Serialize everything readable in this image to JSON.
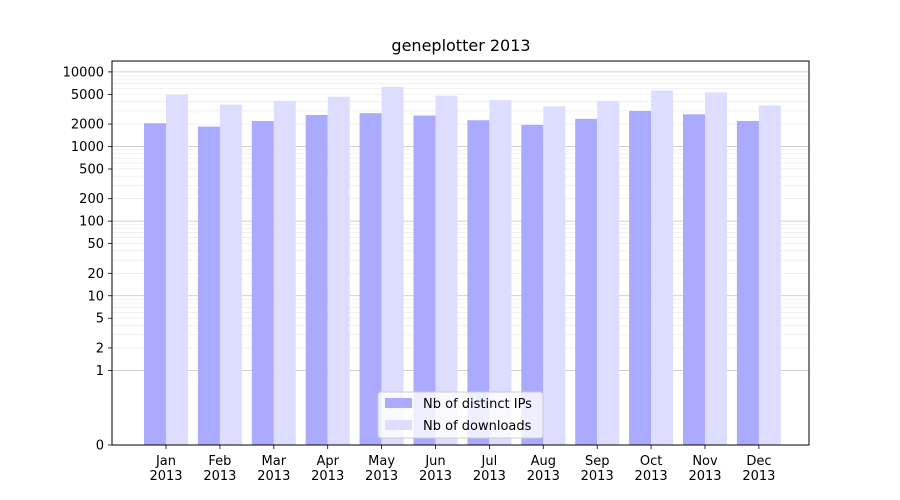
{
  "chart_data": {
    "type": "bar",
    "title": "geneplotter 2013",
    "xlabel": "",
    "ylabel": "",
    "yscale": "symlog",
    "ylim": [
      0,
      14000
    ],
    "grid": true,
    "legend_position": "bottom-center",
    "categories": [
      "Jan\n2013",
      "Feb\n2013",
      "Mar\n2013",
      "Apr\n2013",
      "May\n2013",
      "Jun\n2013",
      "Jul\n2013",
      "Aug\n2013",
      "Sep\n2013",
      "Oct\n2013",
      "Nov\n2013",
      "Dec\n2013"
    ],
    "y_ticks": [
      0,
      1,
      2,
      5,
      10,
      20,
      50,
      100,
      200,
      500,
      1000,
      2000,
      5000,
      10000
    ],
    "y_tick_labels": [
      "0",
      "1",
      "2",
      "5",
      "10",
      "20",
      "50",
      "100",
      "200",
      "500",
      "1000",
      "2000",
      "5000",
      "10000"
    ],
    "series": [
      {
        "name": "Nb of distinct IPs",
        "color": "#aaaaff",
        "values": [
          2050,
          1850,
          2200,
          2650,
          2800,
          2600,
          2250,
          1950,
          2350,
          3000,
          2700,
          2200
        ]
      },
      {
        "name": "Nb of downloads",
        "color": "#ddddff",
        "values": [
          4950,
          3650,
          4100,
          4650,
          6300,
          4800,
          4200,
          3450,
          4100,
          5650,
          5300,
          3550
        ]
      }
    ]
  }
}
